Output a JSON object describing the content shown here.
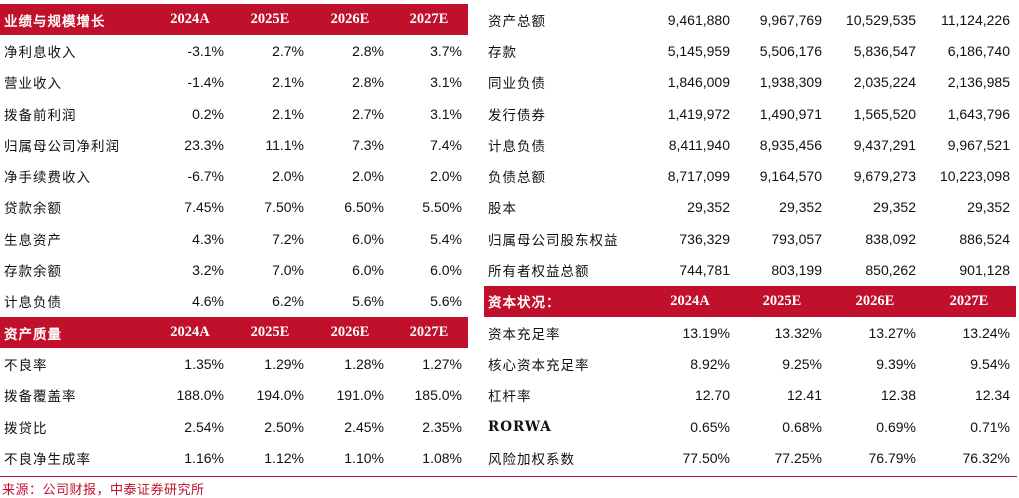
{
  "left": {
    "sections": [
      {
        "header": [
          "业绩与规模增长",
          "2024A",
          "2025E",
          "2026E",
          "2027E"
        ],
        "rows": [
          [
            "净利息收入",
            "-3.1%",
            "2.7%",
            "2.8%",
            "3.7%"
          ],
          [
            "营业收入",
            "-1.4%",
            "2.1%",
            "2.8%",
            "3.1%"
          ],
          [
            "拨备前利润",
            "0.2%",
            "2.1%",
            "2.7%",
            "3.1%"
          ],
          [
            "归属母公司净利润",
            "23.3%",
            "11.1%",
            "7.3%",
            "7.4%"
          ],
          [
            "净手续费收入",
            "-6.7%",
            "2.0%",
            "2.0%",
            "2.0%"
          ],
          [
            "贷款余额",
            "7.45%",
            "7.50%",
            "6.50%",
            "5.50%"
          ],
          [
            "生息资产",
            "4.3%",
            "7.2%",
            "6.0%",
            "5.4%"
          ],
          [
            "存款余额",
            "3.2%",
            "7.0%",
            "6.0%",
            "6.0%"
          ],
          [
            "计息负债",
            "4.6%",
            "6.2%",
            "5.6%",
            "5.6%"
          ]
        ]
      },
      {
        "header": [
          "资产质量",
          "2024A",
          "2025E",
          "2026E",
          "2027E"
        ],
        "rows": [
          [
            "不良率",
            "1.35%",
            "1.29%",
            "1.28%",
            "1.27%"
          ],
          [
            "拨备覆盖率",
            "188.0%",
            "194.0%",
            "191.0%",
            "185.0%"
          ],
          [
            "拨贷比",
            "2.54%",
            "2.50%",
            "2.45%",
            "2.35%"
          ],
          [
            "不良净生成率",
            "1.16%",
            "1.12%",
            "1.10%",
            "1.08%"
          ]
        ]
      }
    ]
  },
  "right": {
    "balance_rows": [
      [
        "资产总额",
        "9,461,880",
        "9,967,769",
        "10,529,535",
        "11,124,226"
      ],
      [
        "存款",
        "5,145,959",
        "5,506,176",
        "5,836,547",
        "6,186,740"
      ],
      [
        "同业负债",
        "1,846,009",
        "1,938,309",
        "2,035,224",
        "2,136,985"
      ],
      [
        "发行债券",
        "1,419,972",
        "1,490,971",
        "1,565,520",
        "1,643,796"
      ],
      [
        "计息负债",
        "8,411,940",
        "8,935,456",
        "9,437,291",
        "9,967,521"
      ],
      [
        "负债总额",
        "8,717,099",
        "9,164,570",
        "9,679,273",
        "10,223,098"
      ],
      [
        "股本",
        "29,352",
        "29,352",
        "29,352",
        "29,352"
      ],
      [
        "归属母公司股东权益",
        "736,329",
        "793,057",
        "838,092",
        "886,524"
      ],
      [
        "所有者权益总额",
        "744,781",
        "803,199",
        "850,262",
        "901,128"
      ]
    ],
    "capital_header": [
      "资本状况：",
      "2024A",
      "2025E",
      "2026E",
      "2027E"
    ],
    "capital_rows": [
      [
        "资本充足率",
        "13.19%",
        "13.32%",
        "13.27%",
        "13.24%"
      ],
      [
        "核心资本充足率",
        "8.92%",
        "9.25%",
        "9.39%",
        "9.54%"
      ],
      [
        "杠杆率",
        "12.70",
        "12.41",
        "12.38",
        "12.34"
      ],
      [
        "RORWA",
        "0.65%",
        "0.68%",
        "0.69%",
        "0.71%"
      ],
      [
        "风险加权系数",
        "77.50%",
        "77.25%",
        "76.79%",
        "76.32%"
      ]
    ]
  },
  "footer": {
    "source": "来源：公司财报，中泰证券研究所"
  },
  "colors": {
    "header_bg": "#c0102c",
    "header_text": "#ffffff",
    "source_text": "#c0102c"
  }
}
